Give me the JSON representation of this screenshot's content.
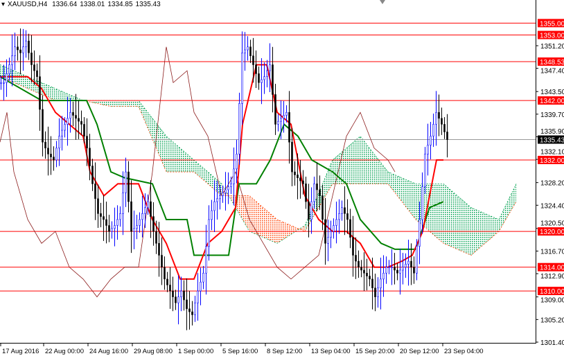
{
  "header": {
    "symbol": "XAUUSD,H4",
    "open": "1336.64",
    "high": "1338.01",
    "low": "1334.85",
    "close": "1335.43"
  },
  "colors": {
    "level": "#ff0000",
    "bull": "#0000ff",
    "bear": "#000000",
    "tenkan": "#ff0000",
    "kijun": "#008000",
    "chikou": "#8b1a1a",
    "cloud_up": "#00a050",
    "cloud_down": "#ff4000"
  },
  "chart_data": {
    "type": "candlestick",
    "ylim": [
      1301.4,
      1355.0
    ],
    "y_ticks": [
      "1351.20",
      "1347.40",
      "1343.50",
      "1339.70",
      "1335.90",
      "1332.10",
      "1328.20",
      "1324.40",
      "1320.50",
      "1316.70",
      "1312.90",
      "1309.00",
      "1305.20",
      "1301.40"
    ],
    "x_ticks": [
      "17 Aug 2016",
      "22 Aug 00:00",
      "24 Aug 16:00",
      "29 Aug 08:00",
      "1 Sep 00:00",
      "5 Sep 16:00",
      "8 Sep 12:00",
      "13 Sep 04:00",
      "15 Sep 20:00",
      "20 Sep 12:00",
      "23 Sep 04:00"
    ],
    "levels": [
      "1355.00",
      "1353.00",
      "1348.53",
      "1342.00",
      "1332.00",
      "1320.00",
      "1314.00",
      "1310.00"
    ],
    "current_price": "1335.43",
    "closes": [
      1345,
      1348,
      1351,
      1350,
      1352,
      1348,
      1346,
      1335,
      1333,
      1332,
      1336,
      1338,
      1340,
      1339,
      1338,
      1334,
      1328,
      1323,
      1322,
      1320,
      1321,
      1323,
      1330,
      1320,
      1321,
      1323,
      1325,
      1320,
      1316,
      1312,
      1310,
      1308,
      1310,
      1307,
      1306,
      1310,
      1313,
      1322,
      1325,
      1326,
      1327,
      1328,
      1333,
      1350,
      1351,
      1348,
      1345,
      1346,
      1348,
      1338,
      1339,
      1340,
      1330,
      1329,
      1328,
      1322,
      1328,
      1326,
      1318,
      1320,
      1322,
      1324,
      1322,
      1316,
      1314,
      1313,
      1312,
      1309,
      1312,
      1314,
      1314,
      1313,
      1314,
      1315,
      1313,
      1322,
      1333,
      1336,
      1340,
      1338,
      1335.43
    ],
    "tenkan": [
      [
        0,
        1346
      ],
      [
        40,
        1346
      ],
      [
        60,
        1344
      ],
      [
        80,
        1340
      ],
      [
        100,
        1338
      ],
      [
        120,
        1336
      ],
      [
        130,
        1330
      ],
      [
        150,
        1326
      ],
      [
        170,
        1328
      ],
      [
        200,
        1328
      ],
      [
        220,
        1322
      ],
      [
        240,
        1318
      ],
      [
        260,
        1312
      ],
      [
        280,
        1312
      ],
      [
        300,
        1318
      ],
      [
        320,
        1320
      ],
      [
        340,
        1324
      ],
      [
        350,
        1338
      ],
      [
        370,
        1348
      ],
      [
        385,
        1348
      ],
      [
        400,
        1340
      ],
      [
        420,
        1338
      ],
      [
        440,
        1326
      ],
      [
        460,
        1322
      ],
      [
        480,
        1320
      ],
      [
        500,
        1320
      ],
      [
        520,
        1318
      ],
      [
        540,
        1314
      ],
      [
        560,
        1314
      ],
      [
        580,
        1315
      ],
      [
        595,
        1316
      ],
      [
        610,
        1320
      ],
      [
        630,
        1332
      ],
      [
        640,
        1332
      ]
    ],
    "kijun": [
      [
        0,
        1346
      ],
      [
        60,
        1342
      ],
      [
        125,
        1342
      ],
      [
        140,
        1338
      ],
      [
        160,
        1330
      ],
      [
        180,
        1329
      ],
      [
        220,
        1328
      ],
      [
        240,
        1322
      ],
      [
        270,
        1322
      ],
      [
        280,
        1316
      ],
      [
        330,
        1316
      ],
      [
        345,
        1328
      ],
      [
        370,
        1328
      ],
      [
        390,
        1332
      ],
      [
        410,
        1338
      ],
      [
        430,
        1336
      ],
      [
        450,
        1332
      ],
      [
        480,
        1330
      ],
      [
        500,
        1328
      ],
      [
        520,
        1322
      ],
      [
        550,
        1318
      ],
      [
        570,
        1317
      ],
      [
        600,
        1317
      ],
      [
        620,
        1324
      ],
      [
        640,
        1325
      ]
    ],
    "span_x": [
      0,
      40,
      80,
      120,
      160,
      200,
      240,
      280,
      320,
      360,
      400,
      440,
      480,
      520,
      560,
      600,
      640,
      680,
      720,
      745
    ],
    "span_a": [
      1348,
      1346,
      1344,
      1342,
      1342,
      1342,
      1336,
      1332,
      1328,
      1320,
      1318,
      1321,
      1332,
      1336,
      1330,
      1328,
      1328,
      1324,
      1322,
      1328
    ],
    "span_b": [
      1346,
      1344,
      1342,
      1342,
      1341,
      1341,
      1330,
      1330,
      1326,
      1326,
      1322,
      1320,
      1328,
      1328,
      1328,
      1322,
      1318,
      1316,
      1320,
      1325
    ],
    "chikou": [
      [
        0,
        1335
      ],
      [
        10,
        1340
      ],
      [
        20,
        1330
      ],
      [
        40,
        1322
      ],
      [
        60,
        1318
      ],
      [
        80,
        1320
      ],
      [
        100,
        1314
      ],
      [
        120,
        1312
      ],
      [
        140,
        1309
      ],
      [
        160,
        1312
      ],
      [
        180,
        1314
      ],
      [
        200,
        1314
      ],
      [
        220,
        1330
      ],
      [
        240,
        1351
      ],
      [
        250,
        1345
      ],
      [
        270,
        1347
      ],
      [
        280,
        1340
      ],
      [
        300,
        1336
      ],
      [
        320,
        1326
      ],
      [
        340,
        1330
      ],
      [
        360,
        1322
      ],
      [
        380,
        1318
      ],
      [
        400,
        1314
      ],
      [
        420,
        1312
      ],
      [
        440,
        1314
      ],
      [
        460,
        1316
      ],
      [
        480,
        1326
      ],
      [
        500,
        1336
      ],
      [
        520,
        1340
      ],
      [
        540,
        1334
      ],
      [
        560,
        1332
      ],
      [
        570,
        1330
      ]
    ]
  }
}
